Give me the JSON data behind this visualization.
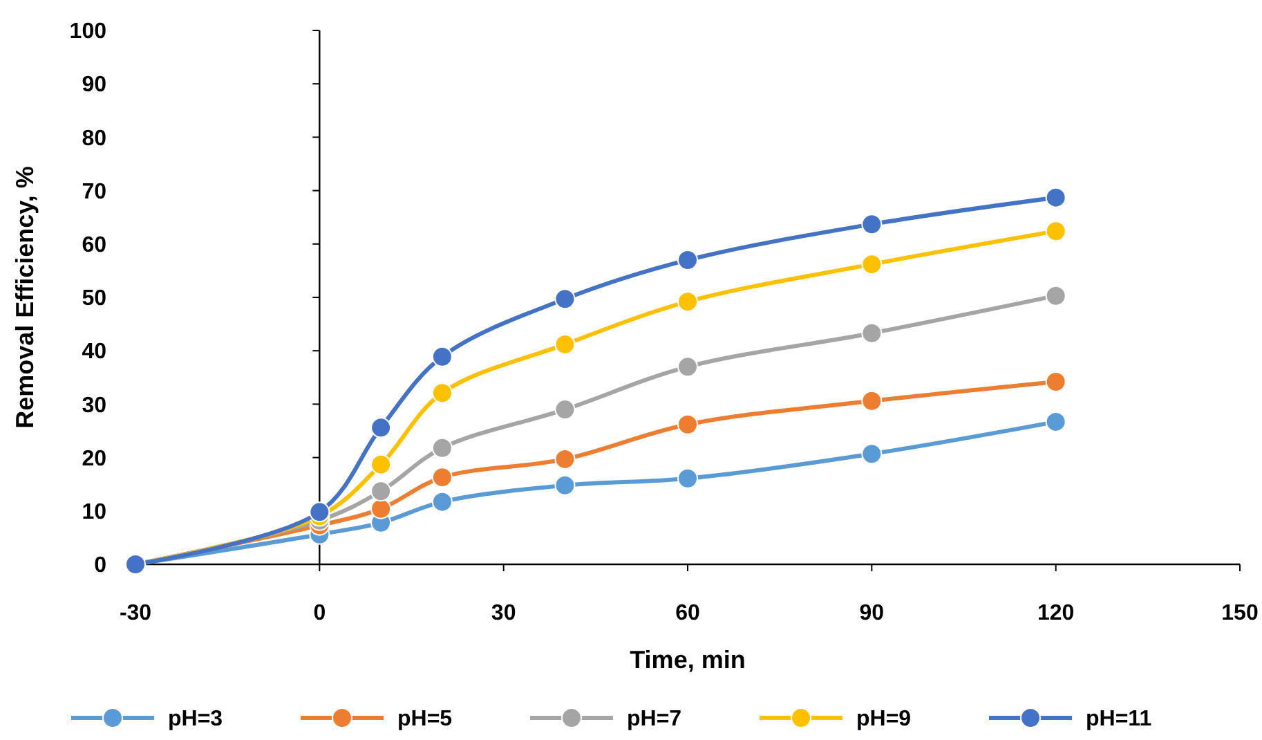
{
  "chart_data": {
    "type": "line",
    "xlabel": "Time, min",
    "ylabel": "Removal Efficiency, %",
    "x": [
      -30,
      0,
      10,
      20,
      40,
      60,
      90,
      120
    ],
    "xlim": [
      -30,
      150
    ],
    "xticks": [
      -30,
      0,
      30,
      60,
      90,
      120,
      150
    ],
    "ylim": [
      0,
      100
    ],
    "yticks": [
      0,
      10,
      20,
      30,
      40,
      50,
      60,
      70,
      80,
      90,
      100
    ],
    "legend": "bottom",
    "marker": "circle",
    "line_style": "solid",
    "series": [
      {
        "name": "pH=3",
        "color": "#5b9bd5",
        "values": [
          0,
          5.6,
          7.8,
          11.7,
          14.8,
          16.1,
          20.7,
          26.7
        ]
      },
      {
        "name": "pH=5",
        "color": "#ed7d31",
        "values": [
          0,
          7.3,
          10.4,
          16.3,
          19.7,
          26.2,
          30.6,
          34.2
        ]
      },
      {
        "name": "pH=7",
        "color": "#a5a5a5",
        "values": [
          0,
          8.2,
          13.7,
          21.8,
          29.0,
          37.0,
          43.3,
          50.3
        ]
      },
      {
        "name": "pH=9",
        "color": "#ffc000",
        "values": [
          0,
          9.0,
          18.7,
          32.1,
          41.2,
          49.2,
          56.2,
          62.4
        ]
      },
      {
        "name": "pH=11",
        "color": "#4472c4",
        "values": [
          0,
          9.8,
          25.6,
          38.9,
          49.7,
          57.0,
          63.7,
          68.7
        ]
      }
    ]
  }
}
